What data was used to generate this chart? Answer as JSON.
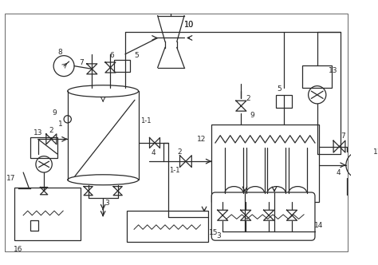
{
  "bg_color": "#ffffff",
  "line_color": "#2a2a2a",
  "figsize": [
    4.74,
    3.32
  ],
  "dpi": 100
}
